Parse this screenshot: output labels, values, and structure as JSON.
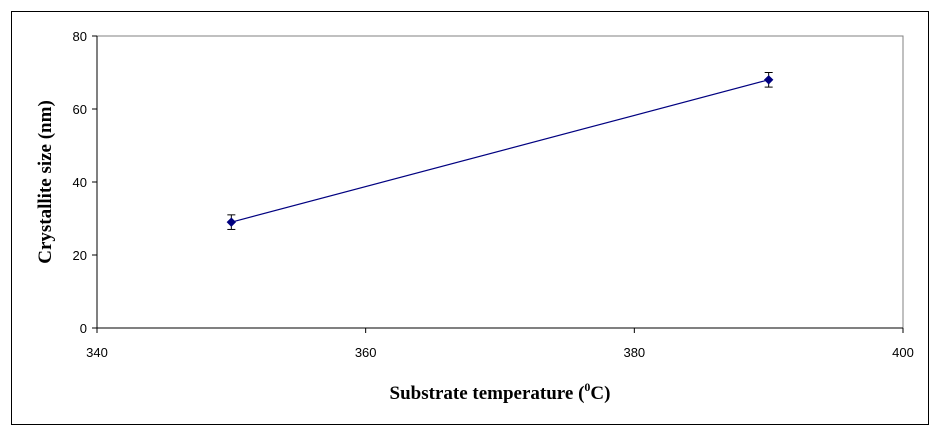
{
  "chart_data": {
    "type": "scatter",
    "title": "",
    "xlabel": {
      "prefix": "Substrate temperature (",
      "superscript": "0",
      "suffix": "C)"
    },
    "ylabel": "Crystallite size (nm)",
    "xlim": [
      340,
      400
    ],
    "ylim": [
      0,
      80
    ],
    "xticks": [
      340,
      360,
      380,
      400
    ],
    "yticks": [
      0,
      20,
      40,
      60,
      80
    ],
    "grid": false,
    "legend": "none",
    "series": [
      {
        "name": "Crystallite size",
        "color": "#000080",
        "marker": "diamond",
        "line": true,
        "points": [
          {
            "x": 350,
            "y": 29,
            "err": 2
          },
          {
            "x": 390,
            "y": 68,
            "err": 2
          }
        ]
      }
    ]
  }
}
